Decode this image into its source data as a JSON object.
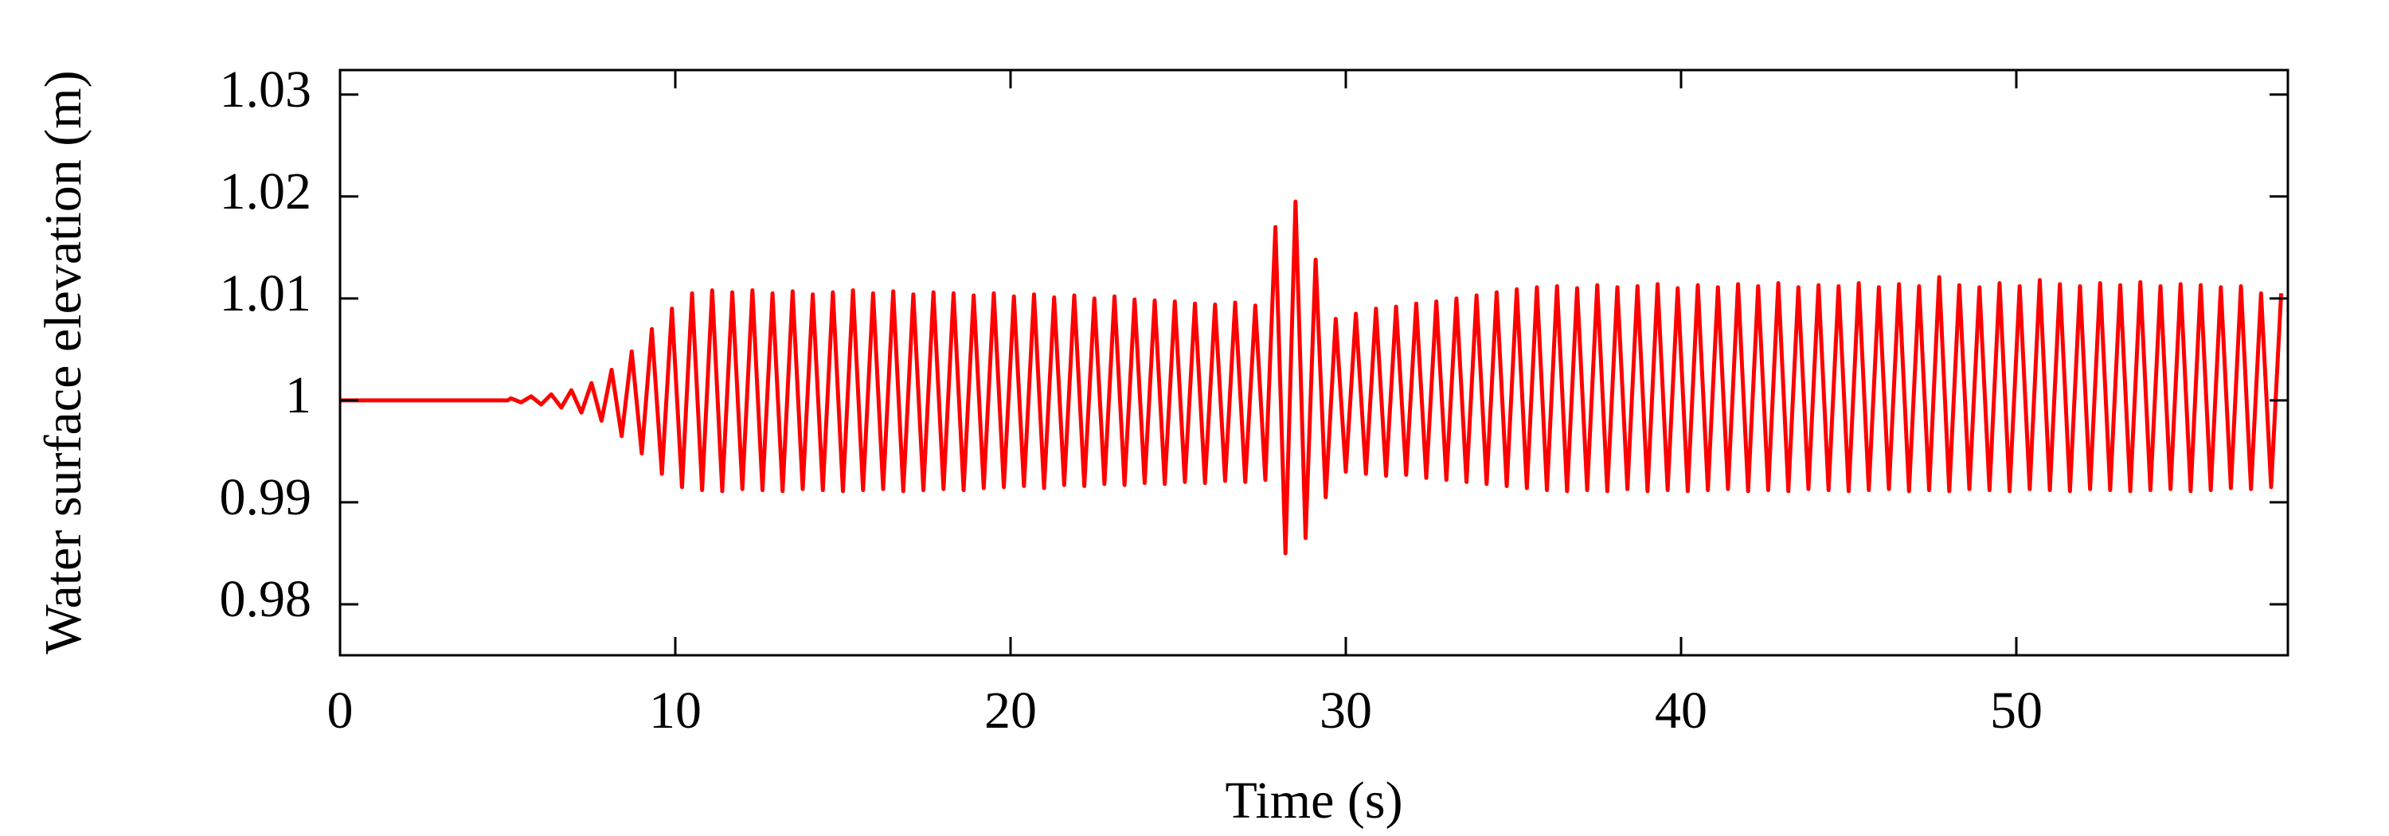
{
  "chart_data": {
    "type": "line",
    "xlabel": "Time (s)",
    "ylabel": "Water surface elevation (m)",
    "color": "#ff0000",
    "xlim": [
      0,
      58.1
    ],
    "ylim": [
      0.975,
      1.0324
    ],
    "xticks": [
      0,
      10,
      20,
      30,
      40,
      50
    ],
    "yticks": [
      0.98,
      0.99,
      1,
      1.01,
      1.02,
      1.03
    ],
    "x": [
      0,
      1,
      2,
      3,
      4,
      5,
      5.1,
      5.4,
      5.7,
      6,
      6.3,
      6.6,
      6.9,
      7.2,
      7.5,
      7.8,
      8.1,
      8.4,
      8.7,
      9,
      9.3,
      9.6,
      9.9,
      10.2,
      10.5,
      10.8,
      11.1,
      11.4,
      11.7,
      12,
      12.3,
      12.6,
      12.9,
      13.2,
      13.5,
      13.8,
      14.1,
      14.4,
      14.7,
      15,
      15.3,
      15.6,
      15.9,
      16.2,
      16.5,
      16.8,
      17.1,
      17.4,
      17.7,
      18,
      18.3,
      18.6,
      18.9,
      19.2,
      19.5,
      19.8,
      20.1,
      20.4,
      20.7,
      21,
      21.3,
      21.6,
      21.9,
      22.2,
      22.5,
      22.8,
      23.1,
      23.4,
      23.7,
      24,
      24.3,
      24.6,
      24.9,
      25.2,
      25.5,
      25.8,
      26.1,
      26.4,
      26.7,
      27,
      27.3,
      27.6,
      27.9,
      28.2,
      28.5,
      28.8,
      29.1,
      29.4,
      29.7,
      30,
      30.3,
      30.6,
      30.9,
      31.2,
      31.5,
      31.8,
      32.1,
      32.4,
      32.7,
      33,
      33.3,
      33.6,
      33.9,
      34.2,
      34.5,
      34.8,
      35.1,
      35.4,
      35.7,
      36,
      36.3,
      36.6,
      36.9,
      37.2,
      37.5,
      37.8,
      38.1,
      38.4,
      38.7,
      39,
      39.3,
      39.6,
      39.9,
      40.2,
      40.5,
      40.8,
      41.1,
      41.4,
      41.7,
      42,
      42.3,
      42.6,
      42.9,
      43.2,
      43.5,
      43.8,
      44.1,
      44.4,
      44.7,
      45,
      45.3,
      45.6,
      45.9,
      46.2,
      46.5,
      46.8,
      47.1,
      47.4,
      47.7,
      48,
      48.3,
      48.6,
      48.9,
      49.2,
      49.5,
      49.8,
      50.1,
      50.4,
      50.7,
      51,
      51.3,
      51.6,
      51.9,
      52.2,
      52.5,
      52.8,
      53.1,
      53.4,
      53.7,
      54,
      54.3,
      54.6,
      54.9,
      55.2,
      55.5,
      55.8,
      56.1,
      56.4,
      56.7,
      57,
      57.3,
      57.6,
      57.9
    ],
    "values": [
      1,
      1,
      1,
      1,
      1,
      1,
      1.0002,
      0.9998,
      1.0004,
      0.9996,
      1.0006,
      0.9993,
      1.001,
      0.9988,
      1.0017,
      0.998,
      1.003,
      0.9965,
      1.0048,
      0.9948,
      1.007,
      0.9928,
      1.009,
      0.9915,
      1.0105,
      0.9912,
      1.0108,
      0.9911,
      1.0106,
      0.9913,
      1.0108,
      0.9912,
      1.0105,
      0.9911,
      1.0107,
      0.9913,
      1.0104,
      0.9912,
      1.0106,
      0.9911,
      1.0108,
      0.9912,
      1.0105,
      0.9913,
      1.0107,
      0.9911,
      1.0104,
      0.9912,
      1.0106,
      0.9913,
      1.0105,
      0.9912,
      1.0103,
      0.9914,
      1.0105,
      0.9915,
      1.0102,
      0.9916,
      1.0104,
      0.9914,
      1.0101,
      0.9917,
      1.0103,
      0.9916,
      1.01,
      0.9918,
      1.0102,
      0.9917,
      1.0099,
      0.9919,
      1.0098,
      0.9918,
      1.0097,
      0.992,
      1.0095,
      0.9919,
      1.0094,
      0.9921,
      1.0096,
      0.992,
      1.0093,
      0.9922,
      1.017,
      0.985,
      1.0195,
      0.9865,
      1.0138,
      0.9905,
      1.008,
      0.993,
      1.0085,
      0.9928,
      1.009,
      0.9926,
      1.0092,
      0.9927,
      1.0095,
      0.9924,
      1.0097,
      0.9922,
      1.01,
      0.992,
      1.0103,
      0.9918,
      1.0106,
      0.9916,
      1.0109,
      0.9914,
      1.0111,
      0.9912,
      1.0112,
      0.9911,
      1.011,
      0.9912,
      1.0113,
      0.9911,
      1.0111,
      0.9913,
      1.0112,
      0.9911,
      1.0114,
      0.9912,
      1.011,
      0.9911,
      1.0113,
      0.9912,
      1.0111,
      0.9913,
      1.0114,
      0.9911,
      1.0112,
      0.9912,
      1.0115,
      0.9911,
      1.0111,
      0.9913,
      1.0113,
      0.9912,
      1.0112,
      0.9911,
      1.0115,
      0.9912,
      1.0111,
      0.9913,
      1.0114,
      0.9911,
      1.0112,
      0.9912,
      1.0121,
      0.9911,
      1.0113,
      0.9913,
      1.0111,
      0.9912,
      1.0115,
      0.9911,
      1.0112,
      0.9913,
      1.0118,
      0.9912,
      1.0114,
      0.9911,
      1.0112,
      0.9913,
      1.0115,
      0.9912,
      1.0113,
      0.9911,
      1.0116,
      0.9912,
      1.0112,
      0.9913,
      1.0114,
      0.9911,
      1.0113,
      0.9912,
      1.0111,
      0.9914,
      1.0112,
      0.9913,
      1.0105,
      0.9915,
      1.0105
    ]
  }
}
